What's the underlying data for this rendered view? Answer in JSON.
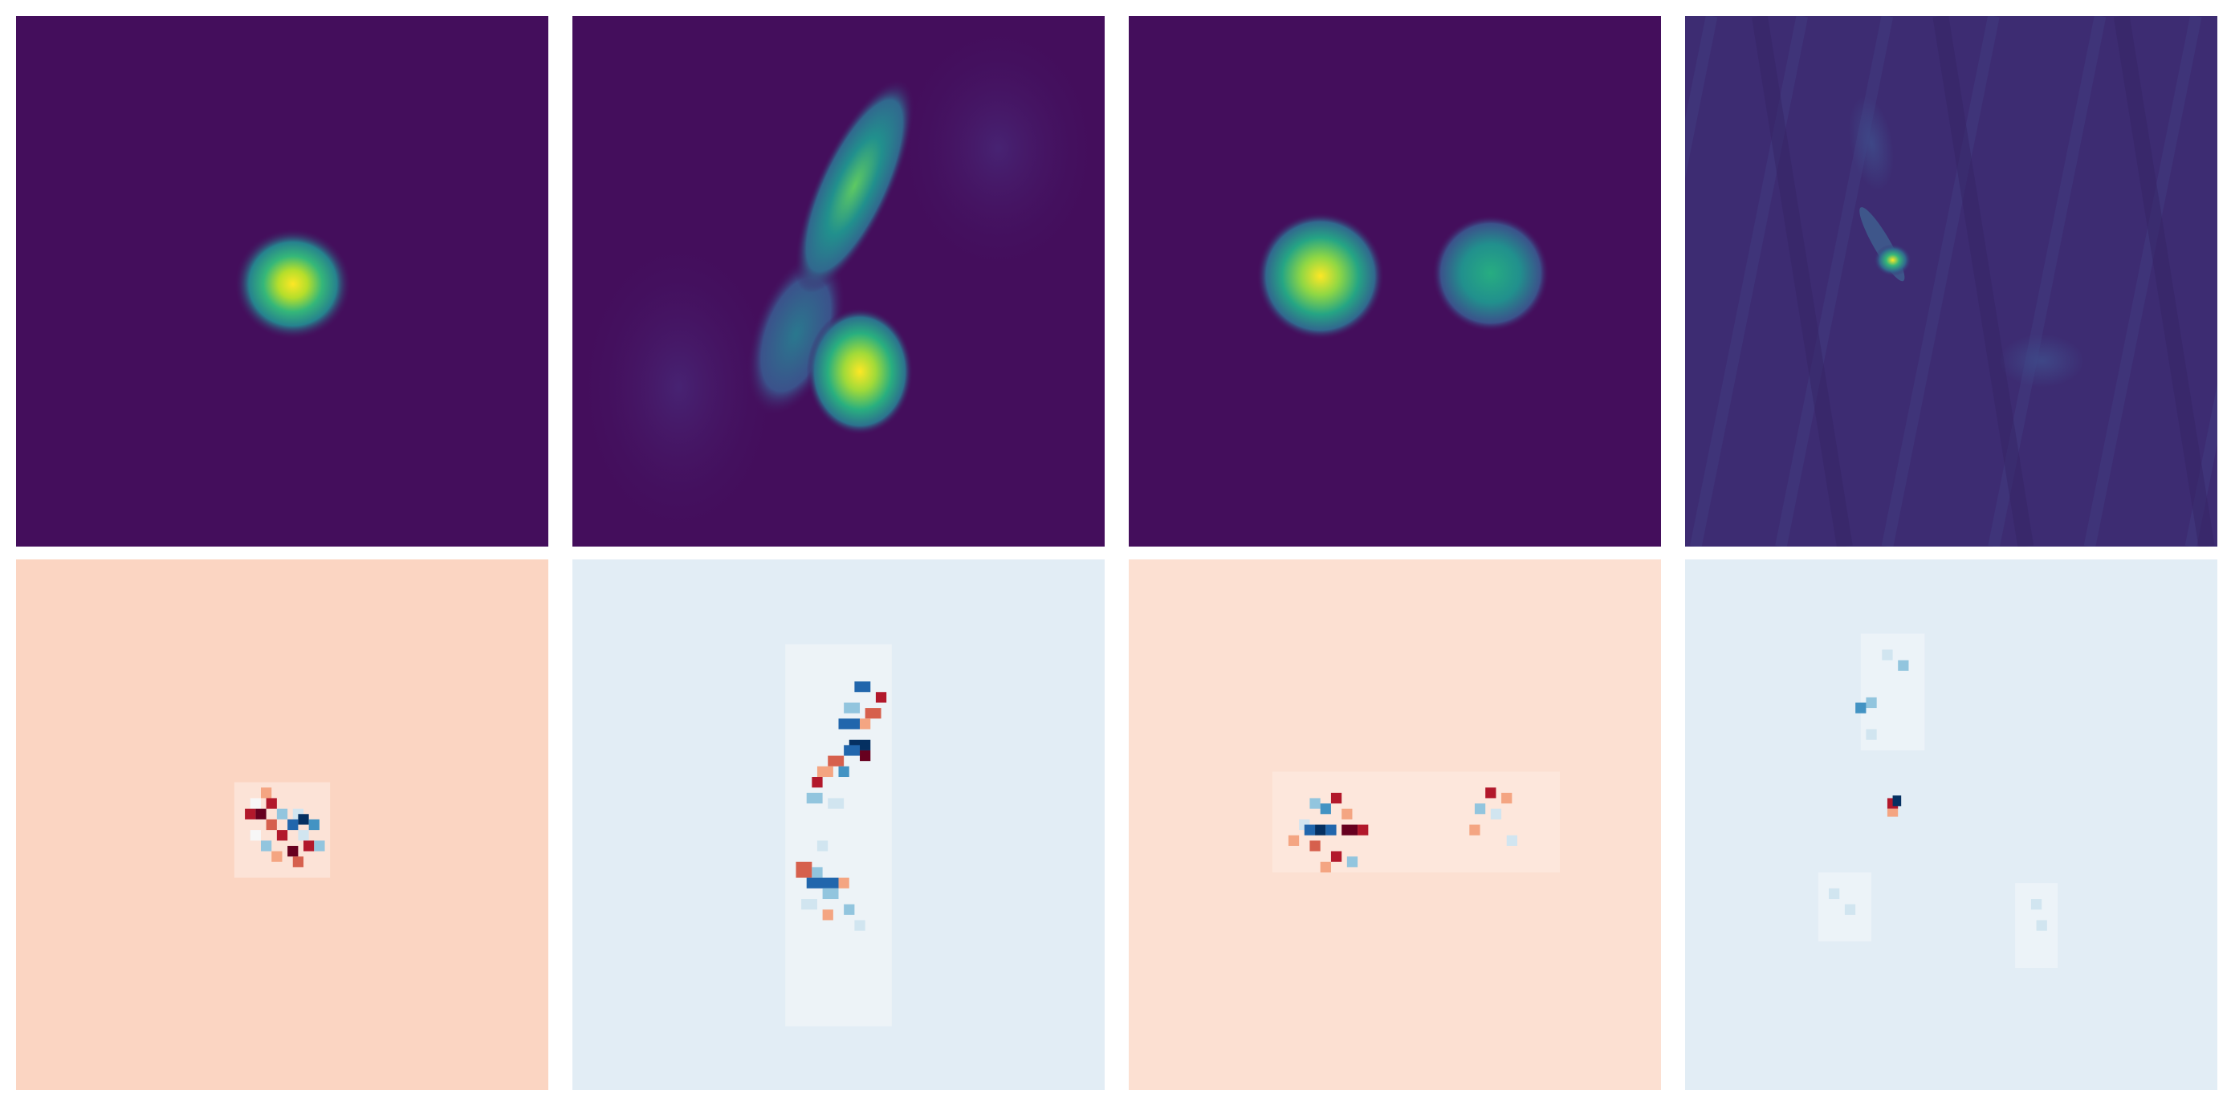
{
  "figure": {
    "rows": 2,
    "cols": 4,
    "top_row_colormap": "viridis",
    "bottom_row_colormap": "RdBu_r",
    "colors": {
      "viridis_background": "#440e5c",
      "viridis_mid_blue": "#3b5a8b",
      "viridis_teal": "#21908d",
      "viridis_green": "#5ec962",
      "viridis_yellow": "#fde725",
      "rdbu_pink_background": "#fbd5c2",
      "rdbu_light_pink_background": "#fce0d2",
      "rdbu_light_blue_background": "#e2edf5",
      "rdbu_red": "#b2182b",
      "rdbu_dark_red": "#67001f",
      "rdbu_blue": "#2166ac",
      "rdbu_dark_blue": "#053061",
      "rdbu_white": "#f7f7f7"
    },
    "panels": [
      {
        "row": 0,
        "col": 0,
        "type": "intensity",
        "description_tag": "single-compact-source"
      },
      {
        "row": 0,
        "col": 1,
        "type": "intensity",
        "description_tag": "elongated-source-with-bright-blob"
      },
      {
        "row": 0,
        "col": 2,
        "type": "intensity",
        "description_tag": "two-separated-sources"
      },
      {
        "row": 0,
        "col": 3,
        "type": "intensity",
        "description_tag": "faint-streaks-with-point-source"
      },
      {
        "row": 1,
        "col": 0,
        "type": "residual",
        "description_tag": "residual-single-source"
      },
      {
        "row": 1,
        "col": 1,
        "type": "residual",
        "description_tag": "residual-elongated-source"
      },
      {
        "row": 1,
        "col": 2,
        "type": "residual",
        "description_tag": "residual-two-sources"
      },
      {
        "row": 1,
        "col": 3,
        "type": "residual",
        "description_tag": "residual-faint-streaks"
      }
    ]
  }
}
